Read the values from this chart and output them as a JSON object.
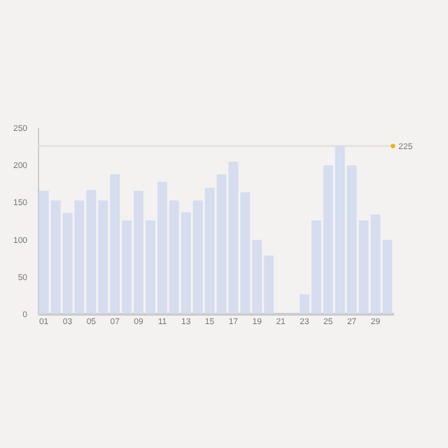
{
  "chart_data": {
    "type": "bar",
    "categories": [
      "01",
      null,
      "03",
      null,
      "05",
      null,
      "07",
      null,
      "09",
      null,
      "11",
      null,
      "13",
      null,
      "15",
      null,
      "17",
      null,
      "19",
      null,
      "21",
      null,
      "23",
      null,
      "25",
      null,
      "27",
      null,
      "29",
      null
    ],
    "values": [
      165,
      152,
      135,
      152,
      166,
      152,
      187,
      125,
      165,
      125,
      177,
      152,
      136,
      152,
      169,
      187,
      204,
      163,
      99,
      78,
      0,
      0,
      26,
      125,
      199,
      225,
      199,
      125,
      133,
      99
    ],
    "color": "#d5ddef",
    "ylim": [
      0,
      250
    ],
    "yticks": [
      0,
      50,
      100,
      150,
      200,
      250
    ],
    "ref_lines": [
      {
        "axis": "y",
        "value": 225,
        "label": "225",
        "color": "#dddddd"
      }
    ]
  }
}
